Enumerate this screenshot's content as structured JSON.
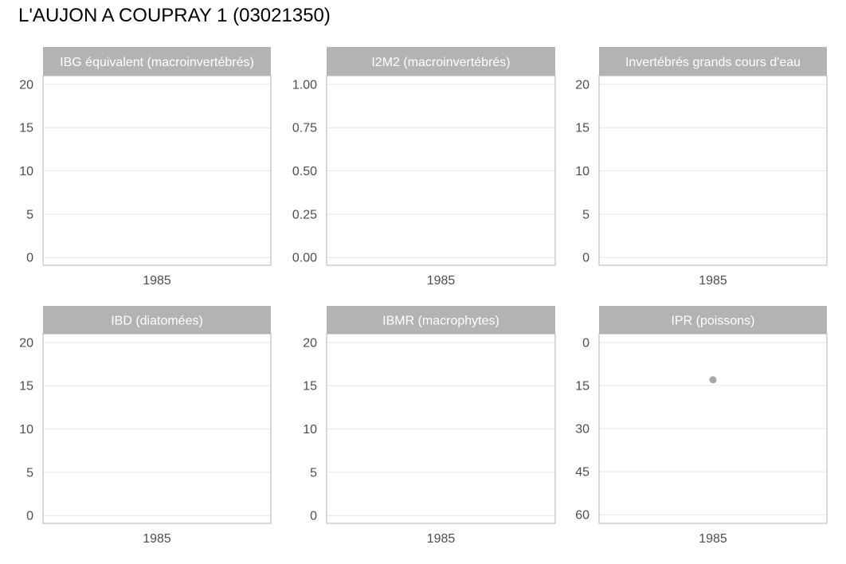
{
  "title": "L'AUJON A COUPRAY 1 (03021350)",
  "colors": {
    "strip": "#b3b3b3",
    "panel_border": "#b3b3b3",
    "grid": "#e6e6e6",
    "point": "#a6a6a6",
    "tick_text": "#4d4d4d"
  },
  "chart_data": [
    {
      "type": "scatter",
      "title": "IBG équivalent (macroinvertébrés)",
      "x_ticks": [
        1985
      ],
      "y_ticks": [
        0,
        5,
        10,
        15,
        20
      ],
      "y_tick_labels": [
        "0",
        "5",
        "10",
        "15",
        "20"
      ],
      "ylim": [
        -0.9,
        21
      ],
      "y_reversed": false,
      "points": []
    },
    {
      "type": "scatter",
      "title": "I2M2 (macroinvertébrés)",
      "x_ticks": [
        1985
      ],
      "y_ticks": [
        0,
        0.25,
        0.5,
        0.75,
        1.0
      ],
      "y_tick_labels": [
        "0.00",
        "0.25",
        "0.50",
        "0.75",
        "1.00"
      ],
      "ylim": [
        -0.045,
        1.05
      ],
      "y_reversed": false,
      "points": []
    },
    {
      "type": "scatter",
      "title": "Invertébrés grands cours d'eau",
      "x_ticks": [
        1985
      ],
      "y_ticks": [
        0,
        5,
        10,
        15,
        20
      ],
      "y_tick_labels": [
        "0",
        "5",
        "10",
        "15",
        "20"
      ],
      "ylim": [
        -0.9,
        21
      ],
      "y_reversed": false,
      "points": []
    },
    {
      "type": "scatter",
      "title": "IBD (diatomées)",
      "x_ticks": [
        1985
      ],
      "y_ticks": [
        0,
        5,
        10,
        15,
        20
      ],
      "y_tick_labels": [
        "0",
        "5",
        "10",
        "15",
        "20"
      ],
      "ylim": [
        -0.9,
        21
      ],
      "y_reversed": false,
      "points": []
    },
    {
      "type": "scatter",
      "title": "IBMR (macrophytes)",
      "x_ticks": [
        1985
      ],
      "y_ticks": [
        0,
        5,
        10,
        15,
        20
      ],
      "y_tick_labels": [
        "0",
        "5",
        "10",
        "15",
        "20"
      ],
      "ylim": [
        -0.9,
        21
      ],
      "y_reversed": false,
      "points": []
    },
    {
      "type": "scatter",
      "title": "IPR (poissons)",
      "x_ticks": [
        1985
      ],
      "y_ticks": [
        0,
        15,
        30,
        45,
        60
      ],
      "y_tick_labels": [
        "0",
        "15",
        "30",
        "45",
        "60"
      ],
      "ylim": [
        -3,
        63
      ],
      "y_reversed": true,
      "points": [
        {
          "x": 1985,
          "y": 13
        }
      ]
    }
  ]
}
